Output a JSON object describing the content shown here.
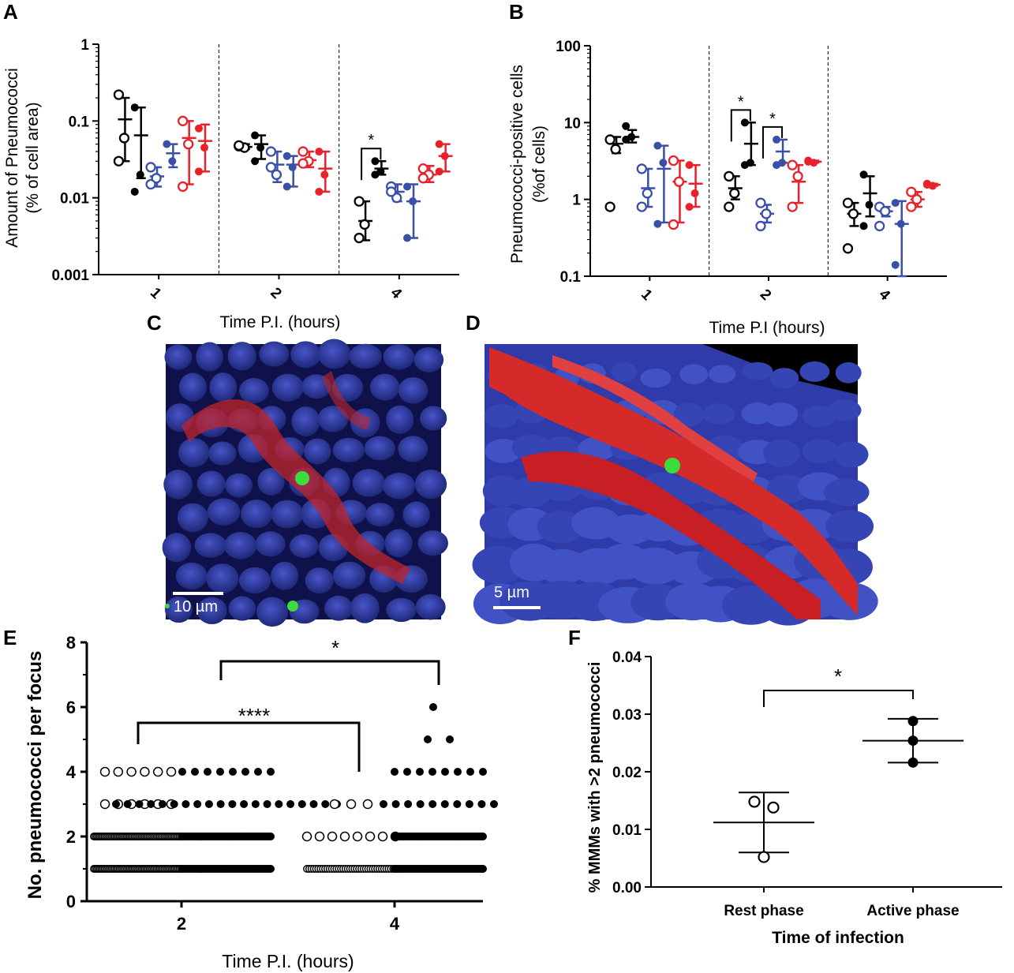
{
  "panels": {
    "A": {
      "label": "A"
    },
    "B": {
      "label": "B"
    },
    "C": {
      "label": "C",
      "scale_bar": "10 µm"
    },
    "D": {
      "label": "D",
      "scale_bar": "5 µm"
    },
    "E": {
      "label": "E"
    },
    "F": {
      "label": "F"
    }
  },
  "colors": {
    "black": "#000000",
    "blue": "#3a4fa8",
    "red": "#e8212a"
  },
  "chart_data": [
    {
      "panel": "A",
      "type": "scatter",
      "ylabel_line1": "Amount of Pneumococci",
      "ylabel_line2": "(% of cell area)",
      "xlabel": "Time P.I. (hours)",
      "yscale": "log",
      "ylim": [
        0.001,
        1
      ],
      "ytick_labels": [
        "1",
        "0.1",
        "0.01",
        "0.001"
      ],
      "categories": [
        "1",
        "2",
        "4"
      ],
      "groups": [
        {
          "category": "1",
          "series": [
            {
              "color": "black",
              "open": true,
              "points": [
                0.22,
                0.06,
                0.03
              ],
              "mean": 0.105,
              "err": [
                0.03,
                0.2
              ]
            },
            {
              "color": "black",
              "open": false,
              "points": [
                0.15,
                0.02,
                0.012
              ],
              "mean": 0.065,
              "err": [
                0.018,
                0.15
              ]
            },
            {
              "color": "blue",
              "open": true,
              "points": [
                0.025,
                0.018,
                0.015
              ],
              "mean": 0.019,
              "err": [
                0.014,
                0.025
              ]
            },
            {
              "color": "blue",
              "open": false,
              "points": [
                0.05,
                0.03
              ],
              "mean": 0.038,
              "err": [
                0.025,
                0.05
              ]
            },
            {
              "color": "red",
              "open": true,
              "points": [
                0.1,
                0.05,
                0.014
              ],
              "mean": 0.06,
              "err": [
                0.015,
                0.1
              ]
            },
            {
              "color": "red",
              "open": false,
              "points": [
                0.08,
                0.045,
                0.022
              ],
              "mean": 0.055,
              "err": [
                0.022,
                0.09
              ]
            }
          ]
        },
        {
          "category": "2",
          "series": [
            {
              "color": "black",
              "open": true,
              "points": [
                0.047,
                0.045,
                0.048
              ],
              "mean": 0.046,
              "err": [
                0.043,
                0.05
              ]
            },
            {
              "color": "black",
              "open": false,
              "points": [
                0.065,
                0.045,
                0.03
              ],
              "mean": 0.05,
              "err": [
                0.032,
                0.065
              ]
            },
            {
              "color": "blue",
              "open": true,
              "points": [
                0.04,
                0.02,
                0.025
              ],
              "mean": 0.027,
              "err": [
                0.016,
                0.04
              ]
            },
            {
              "color": "blue",
              "open": false,
              "points": [
                0.035,
                0.025,
                0.014
              ],
              "mean": 0.027,
              "err": [
                0.014,
                0.035
              ]
            },
            {
              "color": "red",
              "open": true,
              "points": [
                0.04,
                0.03,
                0.028
              ],
              "mean": 0.031,
              "err": [
                0.025,
                0.04
              ]
            },
            {
              "color": "red",
              "open": false,
              "points": [
                0.04,
                0.02,
                0.012
              ],
              "mean": 0.024,
              "err": [
                0.012,
                0.04
              ]
            }
          ]
        },
        {
          "category": "4",
          "series": [
            {
              "color": "black",
              "open": true,
              "points": [
                0.009,
                0.0045,
                0.003
              ],
              "mean": 0.005,
              "err": [
                0.0028,
                0.009
              ]
            },
            {
              "color": "black",
              "open": false,
              "points": [
                0.03,
                0.022,
                0.02
              ],
              "mean": 0.024,
              "err": [
                0.02,
                0.03
              ]
            },
            {
              "color": "blue",
              "open": true,
              "points": [
                0.014,
                0.01,
                0.012
              ],
              "mean": 0.012,
              "err": [
                0.009,
                0.015
              ]
            },
            {
              "color": "blue",
              "open": false,
              "points": [
                0.014,
                0.009,
                0.003
              ],
              "mean": 0.009,
              "err": [
                0.003,
                0.015
              ]
            },
            {
              "color": "red",
              "open": true,
              "points": [
                0.024,
                0.02,
                0.018
              ],
              "mean": 0.02,
              "err": [
                0.016,
                0.026
              ]
            },
            {
              "color": "red",
              "open": false,
              "points": [
                0.05,
                0.035,
                0.022
              ],
              "mean": 0.035,
              "err": [
                0.022,
                0.05
              ]
            }
          ]
        }
      ],
      "significance": [
        {
          "category": "4",
          "between": [
            0,
            1
          ],
          "label": "*"
        }
      ]
    },
    {
      "panel": "B",
      "type": "scatter",
      "ylabel_line1": "Pneumococci-positive cells",
      "ylabel_line2": "(%of cells)",
      "xlabel": "Time P.I (hours)",
      "yscale": "log",
      "ylim": [
        0.1,
        100
      ],
      "ytick_labels": [
        "100",
        "10",
        "1",
        "0.1"
      ],
      "categories": [
        "1",
        "2",
        "4"
      ],
      "groups": [
        {
          "category": "1",
          "series": [
            {
              "color": "black",
              "open": true,
              "points": [
                6.0,
                4.5,
                0.8
              ],
              "mean": 5.3,
              "err": [
                4.0,
                6.5
              ]
            },
            {
              "color": "black",
              "open": false,
              "points": [
                9.0,
                6.5,
                6.0
              ],
              "mean": 6.5,
              "err": [
                5.5,
                8.0
              ]
            },
            {
              "color": "blue",
              "open": true,
              "points": [
                2.5,
                1.2,
                0.8
              ],
              "mean": 1.4,
              "err": [
                0.8,
                2.5
              ]
            },
            {
              "color": "blue",
              "open": false,
              "points": [
                5.0,
                3.0,
                0.48
              ],
              "mean": 2.5,
              "err": [
                0.5,
                5.0
              ]
            },
            {
              "color": "red",
              "open": true,
              "points": [
                3.2,
                1.7,
                0.47
              ],
              "mean": 1.7,
              "err": [
                0.5,
                3.2
              ]
            },
            {
              "color": "red",
              "open": false,
              "points": [
                2.8,
                1.2,
                0.8
              ],
              "mean": 1.6,
              "err": [
                0.8,
                2.8
              ]
            }
          ]
        },
        {
          "category": "2",
          "series": [
            {
              "color": "black",
              "open": true,
              "points": [
                2.0,
                1.2,
                0.8
              ],
              "mean": 1.4,
              "err": [
                1.0,
                2.0
              ]
            },
            {
              "color": "black",
              "open": false,
              "points": [
                10.0,
                3.0,
                2.8
              ],
              "mean": 5.3,
              "err": [
                2.8,
                10.0
              ]
            },
            {
              "color": "blue",
              "open": true,
              "points": [
                0.9,
                0.65,
                0.45
              ],
              "mean": 0.65,
              "err": [
                0.5,
                0.85
              ]
            },
            {
              "color": "blue",
              "open": false,
              "points": [
                6.0,
                3.0,
                2.8
              ],
              "mean": 4.2,
              "err": [
                3.0,
                6.0
              ]
            },
            {
              "color": "red",
              "open": true,
              "points": [
                2.8,
                2.0,
                0.8
              ],
              "mean": 1.7,
              "err": [
                0.9,
                2.8
              ]
            },
            {
              "color": "red",
              "open": false,
              "points": [
                3.2,
                3.0,
                3.1
              ],
              "mean": 3.1,
              "err": [
                3.0,
                3.2
              ]
            }
          ]
        },
        {
          "category": "4",
          "series": [
            {
              "color": "black",
              "open": true,
              "points": [
                0.9,
                0.65,
                0.23
              ],
              "mean": 0.65,
              "err": [
                0.45,
                0.9
              ]
            },
            {
              "color": "black",
              "open": false,
              "points": [
                2.1,
                0.85,
                0.45
              ],
              "mean": 1.2,
              "err": [
                0.6,
                2.0
              ]
            },
            {
              "color": "blue",
              "open": true,
              "points": [
                0.8,
                0.7,
                0.45
              ],
              "mean": 0.7,
              "err": [
                0.6,
                0.8
              ]
            },
            {
              "color": "blue",
              "open": false,
              "points": [
                0.9,
                0.48,
                0.14
              ],
              "mean": 0.48,
              "err": [
                0.1,
                0.95
              ]
            },
            {
              "color": "red",
              "open": true,
              "points": [
                1.25,
                1.0,
                0.8
              ],
              "mean": 1.0,
              "err": [
                0.8,
                1.25
              ]
            },
            {
              "color": "red",
              "open": false,
              "points": [
                1.6,
                1.5,
                1.55
              ],
              "mean": 1.55,
              "err": [
                1.5,
                1.6
              ]
            }
          ]
        }
      ],
      "significance": [
        {
          "category": "2",
          "between": [
            0,
            1
          ],
          "label": "*"
        },
        {
          "category": "2",
          "between": [
            2,
            3
          ],
          "label": "*"
        }
      ]
    },
    {
      "panel": "E",
      "type": "scatter",
      "ylabel": "No. pneumococci per focus",
      "xlabel": "Time P.I. (hours)",
      "ylim": [
        0,
        8
      ],
      "ytick_labels": [
        "0",
        "2",
        "4",
        "6",
        "8"
      ],
      "xtick_labels": [
        "2",
        "4"
      ],
      "groups": [
        {
          "category": "2",
          "series": [
            {
              "color": "black",
              "open": true,
              "counts": {
                "1": 60,
                "2": 60,
                "3": 6,
                "4": 6
              }
            },
            {
              "color": "black",
              "open": false,
              "counts": {
                "1": 60,
                "2": 60,
                "3": 20,
                "4": 8
              }
            }
          ]
        },
        {
          "category": "4",
          "series": [
            {
              "color": "black",
              "open": true,
              "counts": {
                "1": 40,
                "2": 8,
                "3": 3
              }
            },
            {
              "color": "black",
              "open": false,
              "counts": {
                "1": 60,
                "2": 60,
                "3": 10,
                "4": 8,
                "5": 2,
                "6": 1
              }
            }
          ]
        }
      ],
      "significance": [
        {
          "from": "2-open",
          "to": "4-open",
          "label": "****"
        },
        {
          "from": "2-filled",
          "to": "4-filled",
          "label": "*"
        }
      ]
    },
    {
      "panel": "F",
      "type": "scatter",
      "ylabel": "% MMMs with >2 pneumococci",
      "xlabel": "Time of infection",
      "ylim": [
        0,
        0.04
      ],
      "ytick_labels": [
        "0.00",
        "0.01",
        "0.02",
        "0.03",
        "0.04"
      ],
      "categories": [
        "Rest phase",
        "Active phase"
      ],
      "series": [
        {
          "category": "Rest phase",
          "open": true,
          "points": [
            0.0148,
            0.0138,
            0.0052
          ],
          "mean": 0.0112,
          "err": [
            0.006,
            0.0164
          ]
        },
        {
          "category": "Active phase",
          "open": false,
          "points": [
            0.0288,
            0.0254,
            0.0216
          ],
          "mean": 0.0254,
          "err": [
            0.0216,
            0.0292
          ]
        }
      ],
      "significance": [
        {
          "between": [
            "Rest phase",
            "Active phase"
          ],
          "label": "*"
        }
      ]
    }
  ]
}
